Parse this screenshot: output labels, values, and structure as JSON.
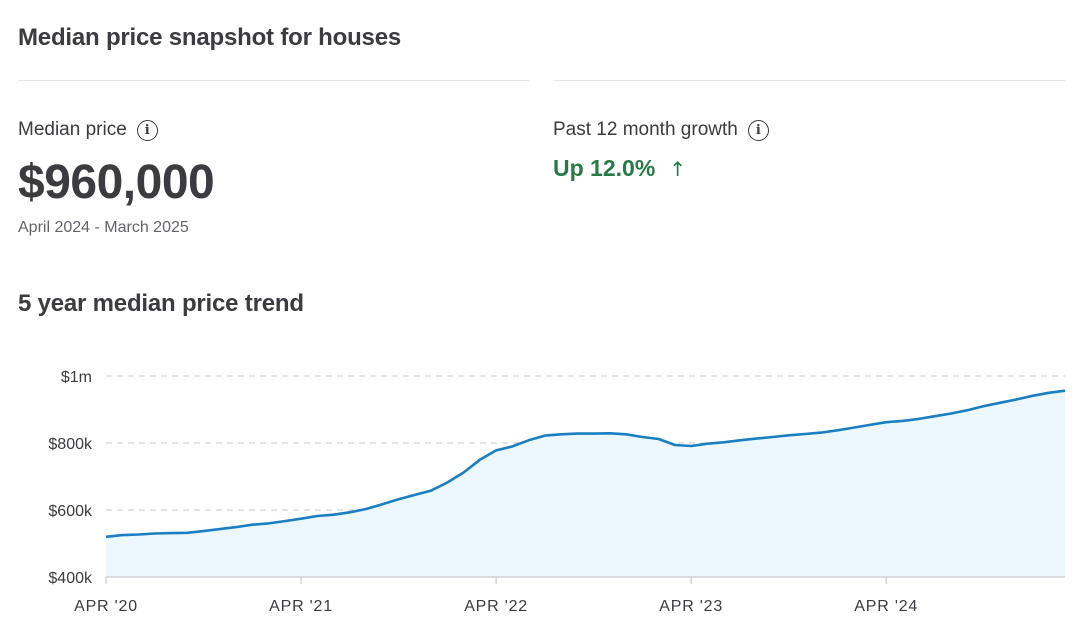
{
  "snapshot": {
    "title": "Median price snapshot for houses",
    "median_label": "Median price",
    "median_value": "$960,000",
    "date_range": "April 2024 - March 2025",
    "growth_label": "Past 12 month growth",
    "growth_value": "Up 12.0%",
    "growth_arrow": "↑",
    "growth_color": "#257a46",
    "info_icon": "info-icon"
  },
  "trend_title": "5 year median price trend",
  "chart_data": {
    "type": "area",
    "title": "5 year median price trend",
    "xlabel": "",
    "ylabel": "",
    "ylim": [
      400000,
      1000000
    ],
    "y_ticks": [
      {
        "value": 1000000,
        "label": "$1m"
      },
      {
        "value": 800000,
        "label": "$800k"
      },
      {
        "value": 600000,
        "label": "$600k"
      },
      {
        "value": 400000,
        "label": "$400k"
      }
    ],
    "x_ticks": [
      {
        "value": "2020-04",
        "label": "APR '20"
      },
      {
        "value": "2021-04",
        "label": "APR '21"
      },
      {
        "value": "2022-04",
        "label": "APR '22"
      },
      {
        "value": "2023-04",
        "label": "APR '23"
      },
      {
        "value": "2024-04",
        "label": "APR '24"
      }
    ],
    "grid": "horizontal-dashed",
    "line_color": "#1a7fc1",
    "fill_color": "#ecf8fd",
    "series": [
      {
        "x": [
          "2020-04",
          "2020-05",
          "2020-06",
          "2020-07",
          "2020-08",
          "2020-09",
          "2020-10",
          "2020-11",
          "2020-12",
          "2021-01",
          "2021-02",
          "2021-03",
          "2021-04",
          "2021-05",
          "2021-06",
          "2021-07",
          "2021-08",
          "2021-09",
          "2021-10",
          "2021-11",
          "2021-12",
          "2022-01",
          "2022-02",
          "2022-03",
          "2022-04",
          "2022-05",
          "2022-06",
          "2022-07",
          "2022-08",
          "2022-09",
          "2022-10",
          "2022-11",
          "2022-12",
          "2023-01",
          "2023-02",
          "2023-03",
          "2023-04",
          "2023-05",
          "2023-06",
          "2023-07",
          "2023-08",
          "2023-09",
          "2023-10",
          "2023-11",
          "2023-12",
          "2024-01",
          "2024-02",
          "2024-03",
          "2024-04",
          "2024-05",
          "2024-06",
          "2024-07",
          "2024-08",
          "2024-09",
          "2024-10",
          "2024-11",
          "2024-12",
          "2025-01",
          "2025-02",
          "2025-03"
        ],
        "values": [
          520000,
          525000,
          527000,
          530000,
          531000,
          532000,
          537000,
          543000,
          549000,
          556000,
          560000,
          567000,
          574000,
          582000,
          586000,
          593000,
          603000,
          617000,
          632000,
          645000,
          658000,
          682000,
          712000,
          750000,
          778000,
          790000,
          808000,
          822000,
          826000,
          828000,
          828000,
          829000,
          826000,
          818000,
          812000,
          794000,
          791000,
          798000,
          802000,
          808000,
          813000,
          818000,
          823000,
          827000,
          831000,
          838000,
          846000,
          854000,
          862000,
          866000,
          872000,
          880000,
          888000,
          898000,
          910000,
          920000,
          930000,
          941000,
          950000,
          956000
        ]
      }
    ]
  }
}
